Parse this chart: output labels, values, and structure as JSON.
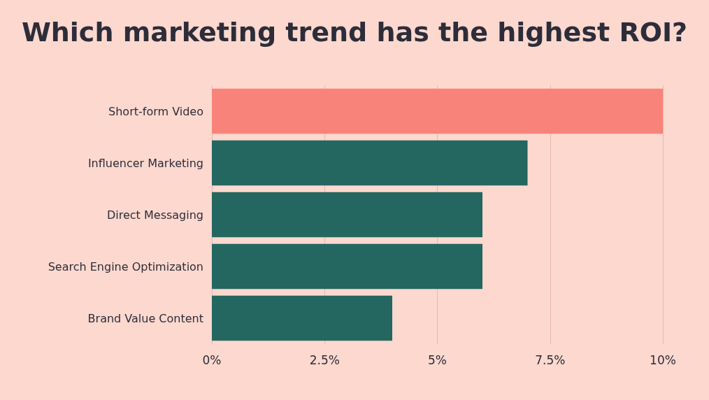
{
  "chart_data": {
    "type": "bar",
    "orientation": "horizontal",
    "title": "Which marketing trend has the highest ROI?",
    "categories": [
      "Short-form Video",
      "Influencer Marketing",
      "Direct Messaging",
      "Search Engine Optimization",
      "Brand Value Content"
    ],
    "values": [
      10,
      7,
      6,
      6,
      4
    ],
    "colors": [
      "#f8837a",
      "#236760",
      "#236760",
      "#236760",
      "#236760"
    ],
    "xlim": [
      0,
      10
    ],
    "xticks": [
      {
        "value": 0,
        "label": "0%"
      },
      {
        "value": 2.5,
        "label": "2.5%"
      },
      {
        "value": 5,
        "label": "5%"
      },
      {
        "value": 7.5,
        "label": "7.5%"
      },
      {
        "value": 10,
        "label": "10%"
      }
    ],
    "grid": "x"
  }
}
